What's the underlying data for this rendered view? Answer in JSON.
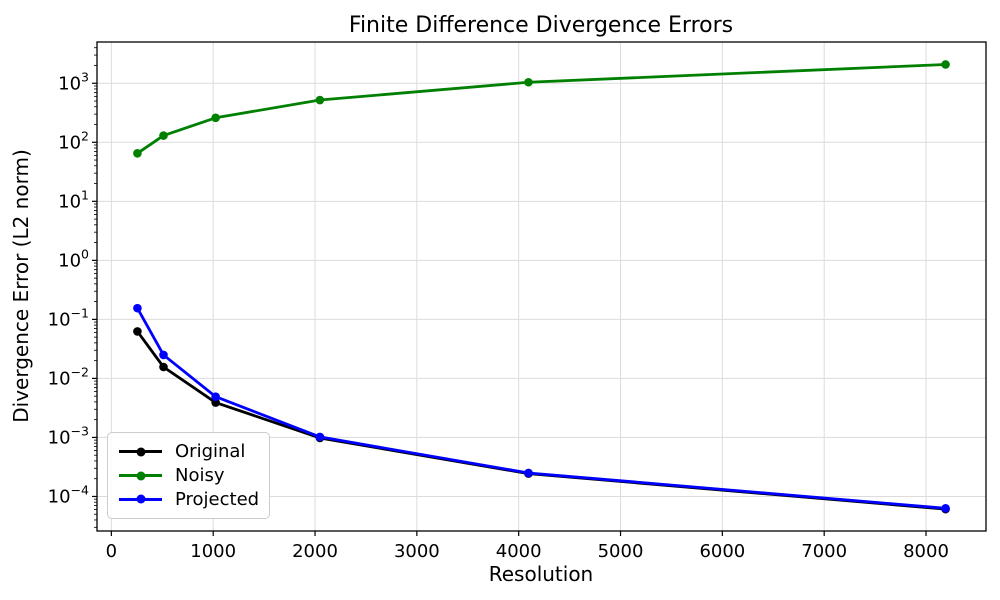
{
  "figure": {
    "title": "Finite Difference Divergence Errors",
    "xlabel": "Resolution",
    "ylabel": "Divergence Error (L2 norm)"
  },
  "chart_data": {
    "type": "line",
    "title": "Finite Difference Divergence Errors",
    "xlabel": "Resolution",
    "ylabel": "Divergence Error (L2 norm)",
    "yscale": "log",
    "grid": true,
    "legend_position": "lower left",
    "x": [
      256,
      512,
      1024,
      2048,
      4096,
      8192
    ],
    "series": [
      {
        "name": "Original",
        "color": "#000000",
        "values": [
          0.0625,
          0.0156,
          0.0039,
          0.00098,
          0.000244,
          6.1e-05
        ]
      },
      {
        "name": "Noisy",
        "color": "#008000",
        "values": [
          65,
          130,
          260,
          520,
          1040,
          2080
        ]
      },
      {
        "name": "Projected",
        "color": "#0000ff",
        "values": [
          0.155,
          0.025,
          0.0049,
          0.00102,
          0.00025,
          6.3e-05
        ]
      }
    ],
    "x_ticks": [
      0,
      1000,
      2000,
      3000,
      4000,
      5000,
      6000,
      7000,
      8000
    ],
    "y_tick_exponents": [
      3,
      2,
      1,
      0,
      -1,
      -2,
      -3,
      -4
    ],
    "xlim": [
      -141,
      8589
    ],
    "ylim": [
      2.6e-05,
      5000
    ]
  }
}
